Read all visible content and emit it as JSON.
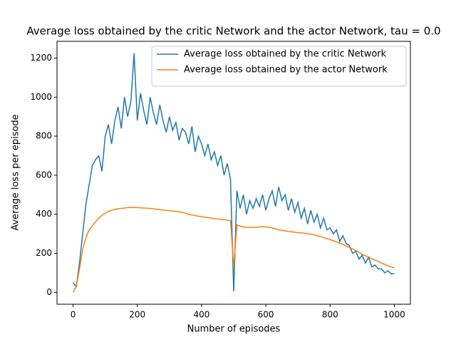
{
  "chart_data": {
    "type": "line",
    "title": "Average loss obtained by the critic Network and the actor Network, tau = 0.0",
    "x_label": "Number of episodes",
    "y_label": "Average loss per episode",
    "x": [
      0,
      10,
      20,
      30,
      40,
      50,
      60,
      70,
      80,
      90,
      100,
      110,
      120,
      130,
      140,
      150,
      160,
      170,
      180,
      190,
      200,
      210,
      220,
      230,
      240,
      250,
      260,
      270,
      280,
      290,
      300,
      310,
      320,
      330,
      340,
      350,
      360,
      370,
      380,
      390,
      400,
      410,
      420,
      430,
      440,
      450,
      460,
      470,
      480,
      490,
      500,
      510,
      520,
      530,
      540,
      550,
      560,
      570,
      580,
      590,
      600,
      610,
      620,
      630,
      640,
      650,
      660,
      670,
      680,
      690,
      700,
      710,
      720,
      730,
      740,
      750,
      760,
      770,
      780,
      790,
      800,
      810,
      820,
      830,
      840,
      850,
      860,
      870,
      880,
      890,
      900,
      910,
      920,
      930,
      940,
      950,
      960,
      970,
      980,
      990,
      1000
    ],
    "series": [
      {
        "name": "Average loss obtained by the critic Network",
        "color": "#1f77b4",
        "values": [
          50,
          30,
          150,
          300,
          450,
          550,
          650,
          680,
          700,
          620,
          800,
          860,
          760,
          880,
          950,
          840,
          1000,
          900,
          980,
          1225,
          880,
          1020,
          930,
          860,
          1000,
          920,
          860,
          960,
          880,
          820,
          900,
          830,
          870,
          780,
          840,
          820,
          760,
          850,
          720,
          800,
          760,
          700,
          760,
          680,
          720,
          650,
          700,
          600,
          660,
          580,
          5,
          520,
          430,
          500,
          400,
          470,
          430,
          480,
          440,
          500,
          420,
          480,
          520,
          440,
          540,
          470,
          500,
          420,
          480,
          410,
          460,
          380,
          430,
          350,
          420,
          360,
          400,
          330,
          380,
          320,
          330,
          300,
          320,
          260,
          290,
          250,
          240,
          200,
          210,
          170,
          190,
          150,
          180,
          130,
          140,
          120,
          120,
          100,
          110,
          95,
          95
        ]
      },
      {
        "name": "Average loss obtained by the actor Network",
        "color": "#ff7f0e",
        "values": [
          0,
          30,
          120,
          220,
          280,
          320,
          340,
          360,
          380,
          395,
          405,
          415,
          420,
          425,
          428,
          430,
          432,
          434,
          435,
          435,
          434,
          433,
          432,
          431,
          430,
          428,
          425,
          423,
          422,
          420,
          418,
          416,
          415,
          412,
          410,
          405,
          400,
          396,
          393,
          390,
          388,
          385,
          383,
          380,
          378,
          376,
          374,
          372,
          370,
          368,
          130,
          345,
          340,
          335,
          333,
          332,
          333,
          333,
          335,
          336,
          335,
          333,
          330,
          325,
          320,
          318,
          315,
          312,
          310,
          308,
          305,
          305,
          303,
          300,
          298,
          295,
          290,
          285,
          280,
          275,
          270,
          265,
          258,
          252,
          245,
          238,
          230,
          222,
          215,
          205,
          195,
          188,
          180,
          172,
          165,
          158,
          150,
          143,
          137,
          131,
          125
        ]
      }
    ],
    "xlim": [
      -50,
      1050
    ],
    "ylim": [
      -61,
      1286
    ],
    "xticks": [
      0,
      200,
      400,
      600,
      800,
      1000
    ],
    "yticks": [
      0,
      200,
      400,
      600,
      800,
      1000,
      1200
    ],
    "grid": false,
    "legend": "upper right"
  }
}
